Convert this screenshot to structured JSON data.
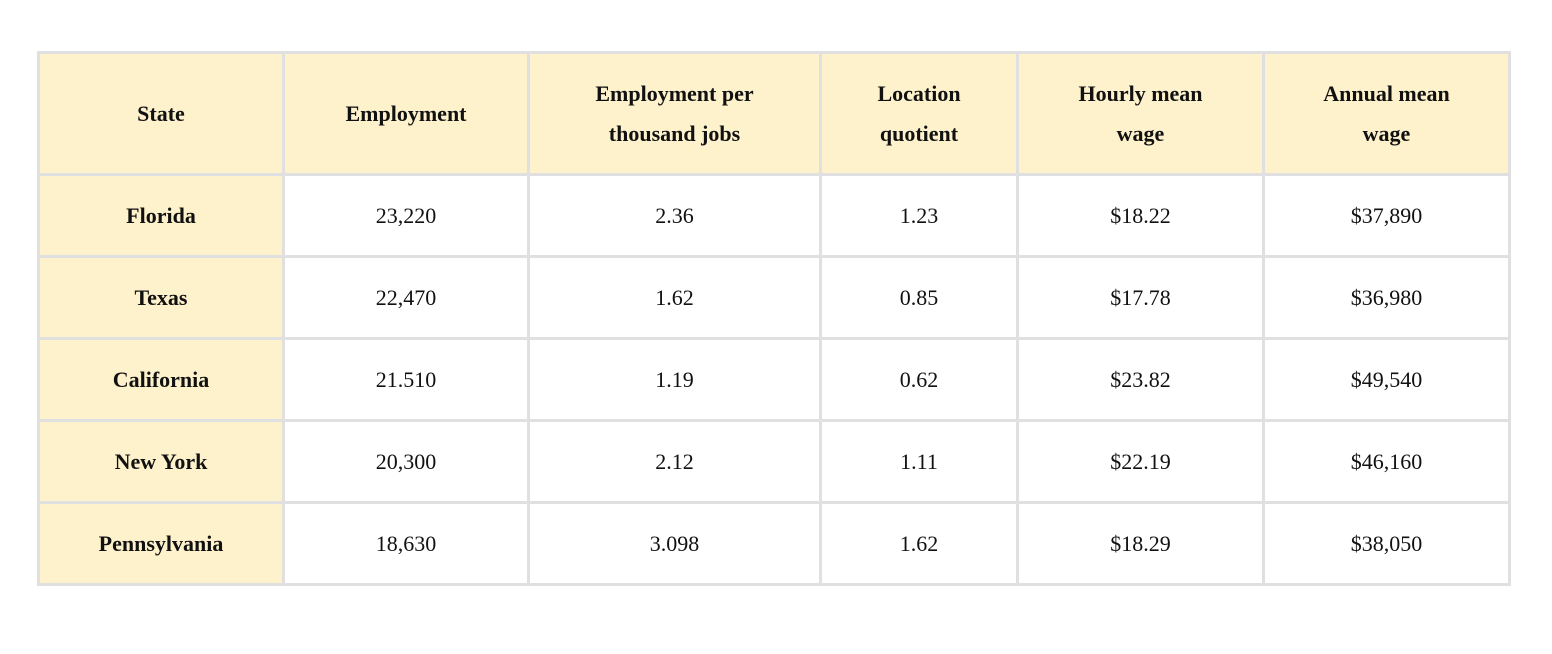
{
  "table": {
    "header": [
      "State",
      "Employment",
      "Employment per thousand jobs",
      "Location quotient",
      "Hourly mean wage",
      "Annual mean wage"
    ],
    "rows": [
      [
        "Florida",
        "23,220",
        "2.36",
        "1.23",
        "$18.22",
        "$37,890"
      ],
      [
        "Texas",
        "22,470",
        "1.62",
        "0.85",
        "$17.78",
        "$36,980"
      ],
      [
        "California",
        "21.510",
        "1.19",
        "0.62",
        "$23.82",
        "$49,540"
      ],
      [
        "New York",
        "20,300",
        "2.12",
        "1.11",
        "$22.19",
        "$46,160"
      ],
      [
        "Pennsylvania",
        "18,630",
        "3.098",
        "1.62",
        "$18.29",
        "$38,050"
      ]
    ]
  }
}
